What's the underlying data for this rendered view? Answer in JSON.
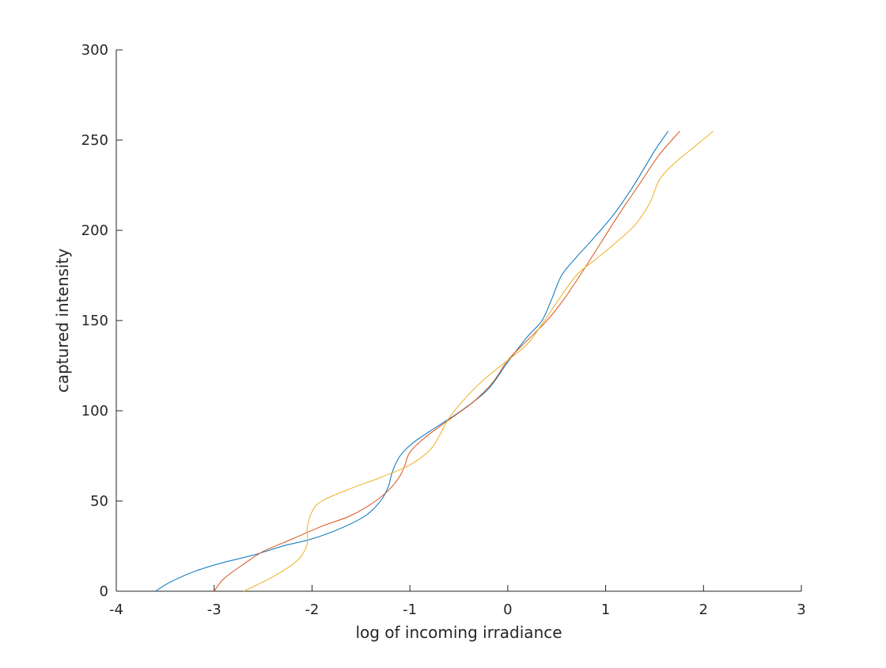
{
  "chart_data": {
    "type": "line",
    "title": "",
    "xlabel": "log of incoming irradiance",
    "ylabel": "captured intensity",
    "xlim": [
      -4,
      3
    ],
    "ylim": [
      0,
      300
    ],
    "xticks": [
      "-4",
      "-3",
      "-2",
      "-1",
      "0",
      "1",
      "2",
      "3"
    ],
    "yticks": [
      "0",
      "50",
      "100",
      "150",
      "200",
      "250",
      "300"
    ],
    "grid": false,
    "legend": "none",
    "series": [
      {
        "color": "#0072BD",
        "points": [
          [
            -3.6,
            0
          ],
          [
            -3.45,
            5
          ],
          [
            -3.2,
            11
          ],
          [
            -2.9,
            16
          ],
          [
            -2.6,
            20
          ],
          [
            -2.3,
            25
          ],
          [
            -2.0,
            29
          ],
          [
            -1.7,
            35
          ],
          [
            -1.45,
            42
          ],
          [
            -1.3,
            50
          ],
          [
            -1.22,
            58
          ],
          [
            -1.18,
            66
          ],
          [
            -1.1,
            75
          ],
          [
            -0.95,
            83
          ],
          [
            -0.7,
            92
          ],
          [
            -0.45,
            101
          ],
          [
            -0.2,
            112
          ],
          [
            0.0,
            127
          ],
          [
            0.2,
            141
          ],
          [
            0.35,
            150
          ],
          [
            0.45,
            162
          ],
          [
            0.55,
            175
          ],
          [
            0.7,
            185
          ],
          [
            0.9,
            197
          ],
          [
            1.1,
            210
          ],
          [
            1.3,
            226
          ],
          [
            1.5,
            244
          ],
          [
            1.64,
            255
          ]
        ]
      },
      {
        "color": "#D95319",
        "points": [
          [
            -3.0,
            0
          ],
          [
            -2.9,
            7
          ],
          [
            -2.7,
            15
          ],
          [
            -2.5,
            22
          ],
          [
            -2.2,
            29
          ],
          [
            -1.9,
            36
          ],
          [
            -1.6,
            42
          ],
          [
            -1.35,
            50
          ],
          [
            -1.2,
            57
          ],
          [
            -1.1,
            64
          ],
          [
            -1.05,
            70
          ],
          [
            -1.0,
            77
          ],
          [
            -0.85,
            85
          ],
          [
            -0.6,
            95
          ],
          [
            -0.35,
            105
          ],
          [
            -0.15,
            116
          ],
          [
            0.0,
            128
          ],
          [
            0.2,
            139
          ],
          [
            0.4,
            150
          ],
          [
            0.55,
            160
          ],
          [
            0.75,
            176
          ],
          [
            0.95,
            193
          ],
          [
            1.15,
            210
          ],
          [
            1.35,
            226
          ],
          [
            1.55,
            242
          ],
          [
            1.76,
            255
          ]
        ]
      },
      {
        "color": "#EDB120",
        "points": [
          [
            -2.7,
            0
          ],
          [
            -2.4,
            8
          ],
          [
            -2.15,
            17
          ],
          [
            -2.05,
            26
          ],
          [
            -2.05,
            35
          ],
          [
            -2.0,
            44
          ],
          [
            -1.9,
            50
          ],
          [
            -1.6,
            57
          ],
          [
            -1.3,
            63
          ],
          [
            -1.0,
            70
          ],
          [
            -0.8,
            78
          ],
          [
            -0.7,
            86
          ],
          [
            -0.6,
            96
          ],
          [
            -0.45,
            106
          ],
          [
            -0.25,
            117
          ],
          [
            0.0,
            128
          ],
          [
            0.2,
            137
          ],
          [
            0.35,
            148
          ],
          [
            0.5,
            160
          ],
          [
            0.7,
            175
          ],
          [
            0.9,
            184
          ],
          [
            1.1,
            193
          ],
          [
            1.3,
            203
          ],
          [
            1.45,
            215
          ],
          [
            1.55,
            228
          ],
          [
            1.7,
            237
          ],
          [
            1.9,
            246
          ],
          [
            2.1,
            255
          ]
        ]
      }
    ]
  }
}
